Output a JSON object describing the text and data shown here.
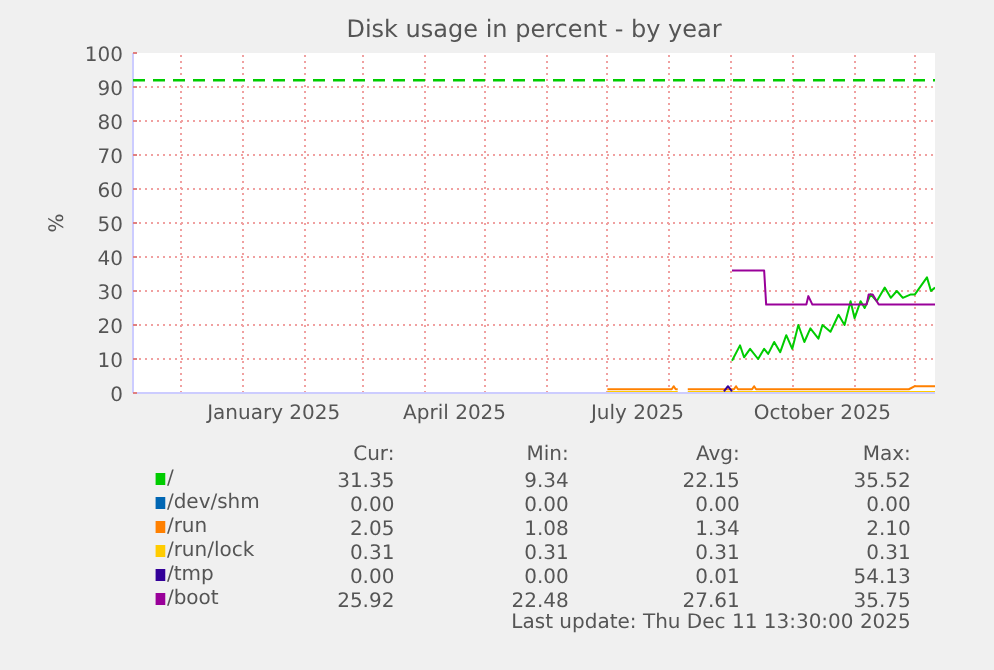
{
  "chart_data": {
    "type": "line",
    "title": "Disk usage in percent - by year",
    "ylabel": "%",
    "xlim": [
      "2024-11-07",
      "2025-12-11"
    ],
    "ylim": [
      0,
      100
    ],
    "yticks": [
      0,
      10,
      20,
      30,
      40,
      50,
      60,
      70,
      80,
      90,
      100
    ],
    "xticks": [
      {
        "value": "2024-12-01",
        "label": null
      },
      {
        "value": "2025-01-01",
        "label": null
      },
      {
        "value": "2025-01-16",
        "label": "January 2025"
      },
      {
        "value": "2025-02-01",
        "label": null
      },
      {
        "value": "2025-03-01",
        "label": null
      },
      {
        "value": "2025-04-01",
        "label": null
      },
      {
        "value": "2025-04-16",
        "label": "April 2025"
      },
      {
        "value": "2025-05-01",
        "label": null
      },
      {
        "value": "2025-06-01",
        "label": null
      },
      {
        "value": "2025-07-01",
        "label": null
      },
      {
        "value": "2025-07-16",
        "label": "July 2025"
      },
      {
        "value": "2025-08-01",
        "label": null
      },
      {
        "value": "2025-09-01",
        "label": null
      },
      {
        "value": "2025-10-01",
        "label": null
      },
      {
        "value": "2025-10-16",
        "label": "October 2025"
      },
      {
        "value": "2025-11-01",
        "label": null
      },
      {
        "value": "2025-12-01",
        "label": null
      }
    ],
    "grid": true,
    "legend": "bottom",
    "ref_lines": [
      {
        "axis": "y",
        "value": 92,
        "color": "#00cc00",
        "line_style": "dashed"
      }
    ],
    "series": [
      {
        "name": "/",
        "color": "#00cc00",
        "x": [
          "2025-09-01",
          "2025-09-05",
          "2025-09-07",
          "2025-09-10",
          "2025-09-14",
          "2025-09-17",
          "2025-09-19",
          "2025-09-22",
          "2025-09-25",
          "2025-09-28",
          "2025-10-01",
          "2025-10-04",
          "2025-10-07",
          "2025-10-10",
          "2025-10-14",
          "2025-10-16",
          "2025-10-20",
          "2025-10-24",
          "2025-10-27",
          "2025-10-30",
          "2025-11-01",
          "2025-11-04",
          "2025-11-06",
          "2025-11-09",
          "2025-11-12",
          "2025-11-16",
          "2025-11-19",
          "2025-11-22",
          "2025-11-25",
          "2025-11-29",
          "2025-12-01",
          "2025-12-07",
          "2025-12-09",
          "2025-12-11"
        ],
        "values": [
          9.5,
          14,
          10.5,
          13,
          10,
          13,
          11.5,
          15,
          12,
          17,
          13,
          20,
          15,
          19,
          16,
          20,
          18,
          23,
          20,
          27,
          22,
          27,
          25,
          29,
          27,
          31,
          28,
          30,
          28,
          29,
          29,
          34,
          30,
          31
        ]
      },
      {
        "name": "/dev/shm",
        "color": "#0066b3"
      },
      {
        "name": "/run",
        "color": "#ff8000",
        "x": [
          "2025-07-01",
          "2025-08-02",
          "2025-08-03",
          "2025-08-04",
          "2025-08-05",
          "2025-08-06",
          "2025-08-10",
          "2025-09-02",
          "2025-09-03",
          "2025-09-04",
          "2025-09-11",
          "2025-09-12",
          "2025-09-13",
          "2025-11-28",
          "2025-12-01",
          "2025-12-11"
        ],
        "values": [
          1.1,
          1.1,
          2,
          1.1,
          1.1,
          null,
          1.1,
          1.1,
          2,
          1.1,
          1.1,
          2,
          1.1,
          1.1,
          2,
          2
        ]
      },
      {
        "name": "/run/lock",
        "color": "#ffcc00",
        "x": [
          "2025-07-01",
          "2025-08-05",
          "2025-08-06",
          "2025-08-10",
          "2025-12-11"
        ],
        "values": [
          0.3,
          0.3,
          null,
          0.3,
          0.3
        ]
      },
      {
        "name": "/tmp",
        "color": "#330099",
        "x": [
          "2025-08-28",
          "2025-08-30",
          "2025-09-01"
        ],
        "values": [
          0.5,
          2,
          0.5
        ]
      },
      {
        "name": "/boot",
        "color": "#990099",
        "x": [
          "2025-09-01",
          "2025-09-17",
          "2025-09-18",
          "2025-10-08",
          "2025-10-09",
          "2025-10-11",
          "2025-11-07",
          "2025-11-08",
          "2025-11-10",
          "2025-11-13",
          "2025-12-11"
        ],
        "values": [
          36,
          36,
          26,
          26,
          28.5,
          26,
          26,
          29,
          29,
          26,
          26
        ]
      }
    ],
    "annotations": [
      "Cur:",
      "Min:",
      "Avg:",
      "Max:",
      "31.35",
      "9.34",
      "22.15",
      "35.52",
      "0.00",
      "0.00",
      "0.00",
      "0.00",
      "2.05",
      "1.08",
      "1.34",
      "2.10",
      "0.31",
      "0.31",
      "0.31",
      "0.31",
      "0.00",
      "0.00",
      "0.01",
      "54.13",
      "25.92",
      "22.48",
      "27.61",
      "35.75",
      "Last update: Thu Dec 11 13:30:00 2025"
    ]
  }
}
